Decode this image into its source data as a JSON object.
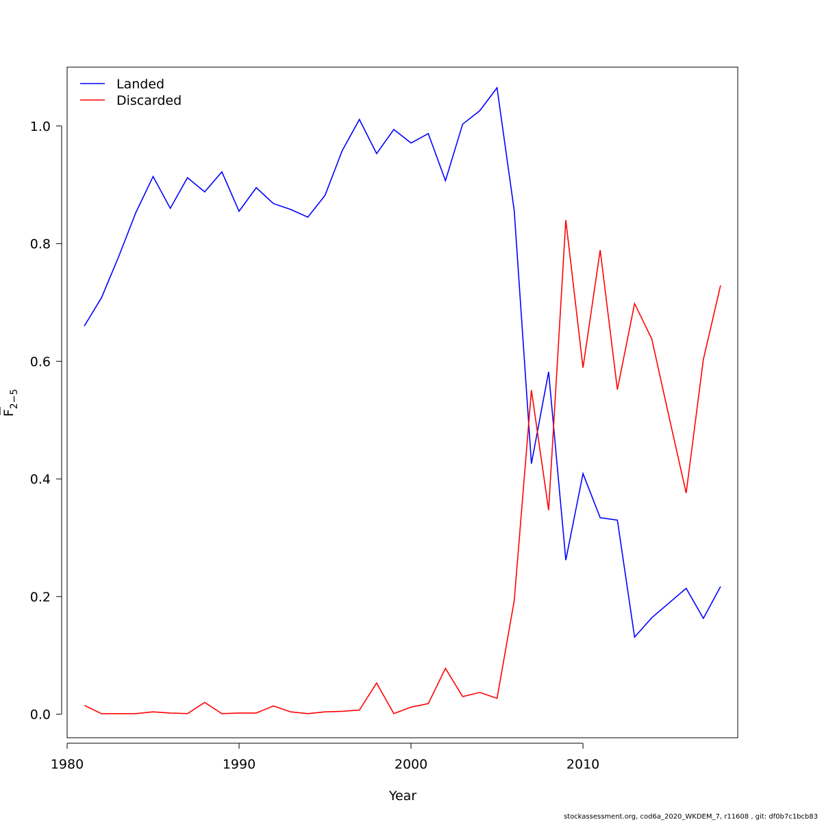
{
  "chart_data": {
    "type": "line",
    "title": "",
    "xlabel": "Year",
    "ylabel": "F",
    "ylabel_subscript": "2−5",
    "xlim": [
      1980,
      2019
    ],
    "ylim": [
      -0.04,
      1.1
    ],
    "x_ticks": [
      1980,
      1990,
      2000,
      2010
    ],
    "y_ticks": [
      0.0,
      0.2,
      0.4,
      0.6,
      0.8,
      1.0
    ],
    "y_tick_labels": [
      "0.0",
      "0.2",
      "0.4",
      "0.6",
      "0.8",
      "1.0"
    ],
    "grid": false,
    "legend_position": "top-left",
    "x": [
      1981,
      1982,
      1983,
      1984,
      1985,
      1986,
      1987,
      1988,
      1989,
      1990,
      1991,
      1992,
      1993,
      1994,
      1995,
      1996,
      1997,
      1998,
      1999,
      2000,
      2001,
      2002,
      2003,
      2004,
      2005,
      2006,
      2007,
      2008,
      2009,
      2010,
      2011,
      2012,
      2013,
      2014,
      2015,
      2016,
      2017,
      2018
    ],
    "series": [
      {
        "name": "Landed",
        "color": "#0000ff",
        "values": [
          0.66,
          0.708,
          0.778,
          0.853,
          0.914,
          0.86,
          0.912,
          0.888,
          0.922,
          0.855,
          0.895,
          0.868,
          0.858,
          0.845,
          0.882,
          0.958,
          1.011,
          0.953,
          0.994,
          0.971,
          0.987,
          0.907,
          1.003,
          1.026,
          1.065,
          0.856,
          0.426,
          0.582,
          0.262,
          0.409,
          0.334,
          0.33,
          0.131,
          0.164,
          0.189,
          0.214,
          0.163,
          0.217
        ]
      },
      {
        "name": "Discarded",
        "color": "#ff0000",
        "values": [
          0.015,
          0.001,
          0.001,
          0.001,
          0.004,
          0.002,
          0.001,
          0.02,
          0.001,
          0.002,
          0.002,
          0.014,
          0.004,
          0.001,
          0.004,
          0.005,
          0.007,
          0.053,
          0.001,
          0.012,
          0.018,
          0.078,
          0.03,
          0.037,
          0.027,
          0.193,
          0.551,
          0.347,
          0.84,
          0.589,
          0.789,
          0.552,
          0.698,
          0.638,
          0.506,
          0.376,
          0.603,
          0.729
        ]
      }
    ]
  },
  "footer": {
    "note": "stockassessment.org, cod6a_2020_WKDEM_7, r11608 , git: df0b7c1bcb83"
  }
}
